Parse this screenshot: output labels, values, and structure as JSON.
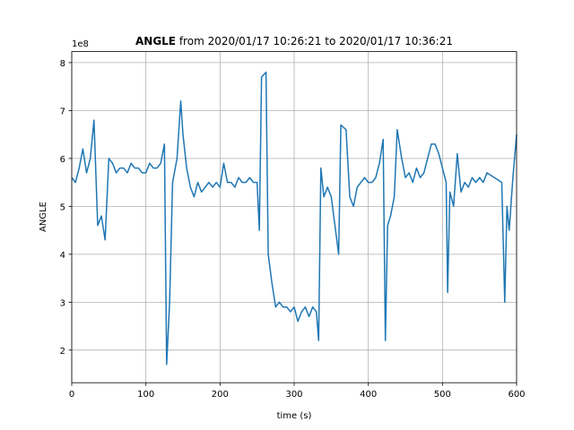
{
  "chart_data": {
    "type": "line",
    "title": {
      "bold": "ANGLE",
      "rest": " from 2020/01/17 10:26:21 to 2020/01/17 10:36:21"
    },
    "xlabel": "time (s)",
    "ylabel": "ANGLE",
    "y_offset_label": "1e8",
    "xlim": [
      0,
      600
    ],
    "ylim": [
      1.32,
      8.23
    ],
    "xticks": [
      0,
      100,
      200,
      300,
      400,
      500,
      600
    ],
    "yticks": [
      2,
      3,
      4,
      5,
      6,
      7,
      8
    ],
    "grid": true,
    "x": [
      0,
      5,
      10,
      15,
      20,
      25,
      30,
      35,
      40,
      45,
      50,
      55,
      60,
      65,
      70,
      75,
      80,
      85,
      90,
      95,
      100,
      105,
      110,
      115,
      120,
      125,
      128,
      132,
      136,
      142,
      147,
      150,
      155,
      160,
      165,
      170,
      175,
      180,
      185,
      190,
      195,
      200,
      205,
      210,
      215,
      220,
      225,
      230,
      235,
      240,
      245,
      250,
      253,
      256,
      262,
      265,
      270,
      275,
      280,
      285,
      290,
      295,
      300,
      305,
      310,
      315,
      320,
      325,
      330,
      333,
      336,
      340,
      345,
      350,
      355,
      360,
      363,
      370,
      375,
      380,
      385,
      390,
      395,
      400,
      405,
      410,
      415,
      420,
      423,
      426,
      430,
      435,
      439,
      445,
      450,
      455,
      460,
      465,
      470,
      475,
      480,
      485,
      490,
      495,
      500,
      505,
      507,
      510,
      515,
      520,
      525,
      530,
      535,
      540,
      545,
      550,
      555,
      560,
      570,
      580,
      584,
      587,
      590,
      595,
      600
    ],
    "series": [
      {
        "name": "ANGLE",
        "color": "#1f77b4",
        "values": [
          5.6,
          5.5,
          5.8,
          6.2,
          5.7,
          6.0,
          6.8,
          4.6,
          4.8,
          4.3,
          6.0,
          5.9,
          5.7,
          5.8,
          5.8,
          5.7,
          5.9,
          5.8,
          5.8,
          5.7,
          5.7,
          5.9,
          5.8,
          5.8,
          5.9,
          6.3,
          1.7,
          3.0,
          5.5,
          6.0,
          7.2,
          6.5,
          5.8,
          5.4,
          5.2,
          5.5,
          5.3,
          5.4,
          5.5,
          5.4,
          5.5,
          5.4,
          5.9,
          5.5,
          5.5,
          5.4,
          5.6,
          5.5,
          5.5,
          5.6,
          5.5,
          5.5,
          4.5,
          7.7,
          7.8,
          4.0,
          3.4,
          2.9,
          3.0,
          2.9,
          2.9,
          2.8,
          2.9,
          2.6,
          2.8,
          2.9,
          2.7,
          2.9,
          2.8,
          2.2,
          5.8,
          5.2,
          5.4,
          5.2,
          4.6,
          4.0,
          6.7,
          6.6,
          5.2,
          5.0,
          5.4,
          5.5,
          5.6,
          5.5,
          5.5,
          5.6,
          5.9,
          6.4,
          2.2,
          4.6,
          4.8,
          5.2,
          6.6,
          6.0,
          5.6,
          5.7,
          5.5,
          5.8,
          5.6,
          5.7,
          6.0,
          6.3,
          6.3,
          6.1,
          5.8,
          5.5,
          3.2,
          5.3,
          5.0,
          6.1,
          5.3,
          5.5,
          5.4,
          5.6,
          5.5,
          5.6,
          5.5,
          5.7,
          5.6,
          5.5,
          3.0,
          5.0,
          4.5,
          5.6,
          6.5
        ]
      }
    ]
  }
}
